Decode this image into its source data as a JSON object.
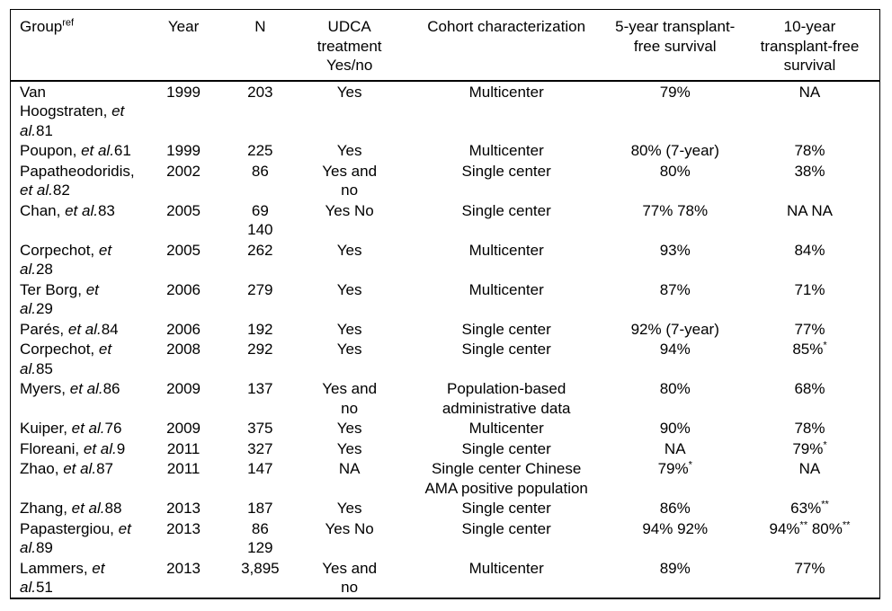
{
  "colors": {
    "background": "#ffffff",
    "text": "#000000",
    "table_border": "#000000"
  },
  "table": {
    "columns": [
      {
        "label": "Group",
        "sup": "ref",
        "align": "left"
      },
      {
        "label": "Year"
      },
      {
        "label": "N"
      },
      {
        "label": "UDCA\ntreatment\nYes/no"
      },
      {
        "label": "Cohort characterization"
      },
      {
        "label": "5-year transplant-\nfree survival"
      },
      {
        "label": "10-year\ntransplant-free\nsurvival"
      }
    ],
    "rows": [
      {
        "group": [
          {
            "t": "Van\nHoogstraten, "
          },
          {
            "t": "et\nal.",
            "i": true
          },
          {
            "t": "81"
          }
        ],
        "year": "1999",
        "n": "203",
        "udca": "Yes",
        "cohort": "Multicenter",
        "y5": [
          {
            "t": "79%"
          }
        ],
        "y10": [
          {
            "t": "NA"
          }
        ]
      },
      {
        "group": [
          {
            "t": "Poupon, "
          },
          {
            "t": "et al.",
            "i": true
          },
          {
            "t": "61"
          }
        ],
        "year": "1999",
        "n": "225",
        "udca": "Yes",
        "cohort": "Multicenter",
        "y5": [
          {
            "t": "80% (7-year)"
          }
        ],
        "y10": [
          {
            "t": "78%"
          }
        ]
      },
      {
        "group": [
          {
            "t": "Papatheodoridis,\n"
          },
          {
            "t": "et al.",
            "i": true
          },
          {
            "t": "82"
          }
        ],
        "year": "2002",
        "n": "86",
        "udca": "Yes and\nno",
        "cohort": "Single center",
        "y5": [
          {
            "t": "80%"
          }
        ],
        "y10": [
          {
            "t": "38%"
          }
        ]
      },
      {
        "group": [
          {
            "t": "Chan, "
          },
          {
            "t": "et al.",
            "i": true
          },
          {
            "t": "83"
          }
        ],
        "year": "2005",
        "n": "69\n140",
        "udca": "Yes No",
        "cohort": "Single center",
        "y5": [
          {
            "t": "77% 78%"
          }
        ],
        "y10": [
          {
            "t": "NA NA"
          }
        ]
      },
      {
        "group": [
          {
            "t": "Corpechot, "
          },
          {
            "t": "et\nal.",
            "i": true
          },
          {
            "t": "28"
          }
        ],
        "year": "2005",
        "n": "262",
        "udca": "Yes",
        "cohort": "Multicenter",
        "y5": [
          {
            "t": "93%"
          }
        ],
        "y10": [
          {
            "t": "84%"
          }
        ]
      },
      {
        "group": [
          {
            "t": "Ter Borg, "
          },
          {
            "t": "et\nal.",
            "i": true
          },
          {
            "t": "29"
          }
        ],
        "year": "2006",
        "n": "279",
        "udca": "Yes",
        "cohort": "Multicenter",
        "y5": [
          {
            "t": "87%"
          }
        ],
        "y10": [
          {
            "t": "71%"
          }
        ]
      },
      {
        "group": [
          {
            "t": "Parés, "
          },
          {
            "t": "et al.",
            "i": true
          },
          {
            "t": "84"
          }
        ],
        "year": "2006",
        "n": "192",
        "udca": "Yes",
        "cohort": "Single center",
        "y5": [
          {
            "t": "92% (7-year)"
          }
        ],
        "y10": [
          {
            "t": "77%"
          }
        ]
      },
      {
        "group": [
          {
            "t": "Corpechot, "
          },
          {
            "t": "et\nal.",
            "i": true
          },
          {
            "t": "85"
          }
        ],
        "year": "2008",
        "n": "292",
        "udca": "Yes",
        "cohort": "Single center",
        "y5": [
          {
            "t": "94%"
          }
        ],
        "y10": [
          {
            "t": "85%"
          },
          {
            "t": "*",
            "sup": true
          }
        ]
      },
      {
        "group": [
          {
            "t": "Myers, "
          },
          {
            "t": "et al.",
            "i": true
          },
          {
            "t": "86"
          }
        ],
        "year": "2009",
        "n": "137",
        "udca": "Yes and\nno",
        "cohort": "Population-based\nadministrative data",
        "y5": [
          {
            "t": "80%"
          }
        ],
        "y10": [
          {
            "t": "68%"
          }
        ]
      },
      {
        "group": [
          {
            "t": "Kuiper, "
          },
          {
            "t": "et al.",
            "i": true
          },
          {
            "t": "76"
          }
        ],
        "year": "2009",
        "n": "375",
        "udca": "Yes",
        "cohort": "Multicenter",
        "y5": [
          {
            "t": "90%"
          }
        ],
        "y10": [
          {
            "t": "78%"
          }
        ]
      },
      {
        "group": [
          {
            "t": "Floreani, "
          },
          {
            "t": "et al.",
            "i": true
          },
          {
            "t": "9"
          }
        ],
        "year": "2011",
        "n": "327",
        "udca": "Yes",
        "cohort": "Single center",
        "y5": [
          {
            "t": "NA"
          }
        ],
        "y10": [
          {
            "t": "79%"
          },
          {
            "t": "*",
            "sup": true
          }
        ]
      },
      {
        "group": [
          {
            "t": "Zhao, "
          },
          {
            "t": "et al.",
            "i": true
          },
          {
            "t": "87"
          }
        ],
        "year": "2011",
        "n": "147",
        "udca": "NA",
        "cohort": "Single center Chinese\nAMA positive population",
        "y5": [
          {
            "t": "79%"
          },
          {
            "t": "*",
            "sup": true
          }
        ],
        "y10": [
          {
            "t": "NA"
          }
        ]
      },
      {
        "group": [
          {
            "t": "Zhang, "
          },
          {
            "t": "et al.",
            "i": true
          },
          {
            "t": "88"
          }
        ],
        "year": "2013",
        "n": "187",
        "udca": "Yes",
        "cohort": "Single center",
        "y5": [
          {
            "t": "86%"
          }
        ],
        "y10": [
          {
            "t": "63%"
          },
          {
            "t": "**",
            "sup": true
          }
        ]
      },
      {
        "group": [
          {
            "t": "Papastergiou, "
          },
          {
            "t": "et\nal.",
            "i": true
          },
          {
            "t": "89"
          }
        ],
        "year": "2013",
        "n": "86\n129",
        "udca": "Yes No",
        "cohort": "Single center",
        "y5": [
          {
            "t": "94% 92%"
          }
        ],
        "y10": [
          {
            "t": "94%"
          },
          {
            "t": "**",
            "sup": true
          },
          {
            "t": " 80%"
          },
          {
            "t": "**",
            "sup": true
          }
        ]
      },
      {
        "group": [
          {
            "t": "Lammers, "
          },
          {
            "t": "et\nal.",
            "i": true
          },
          {
            "t": "51"
          }
        ],
        "year": "2013",
        "n": "3,895",
        "udca": "Yes and\nno",
        "cohort": "Multicenter",
        "y5": [
          {
            "t": "89%"
          }
        ],
        "y10": [
          {
            "t": "77%"
          }
        ]
      }
    ]
  }
}
